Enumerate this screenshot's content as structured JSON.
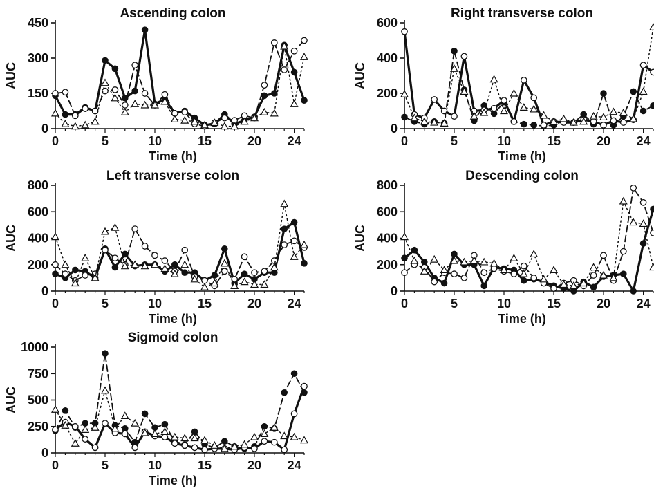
{
  "chart_data": [
    {
      "type": "line",
      "title": "Ascending colon",
      "xlabel": "Time (h)",
      "ylabel": "AUC",
      "xlim": [
        0,
        25
      ],
      "ylim": [
        0,
        450
      ],
      "xticks": [
        "0",
        "5",
        "10",
        "15",
        "20",
        "24"
      ],
      "yticks": [
        "0",
        "150",
        "300",
        "450"
      ],
      "series": [
        {
          "marker": "filled-circle",
          "line": "solid",
          "x": [
            0,
            1,
            2,
            3,
            4,
            5,
            6,
            7,
            8,
            9,
            10,
            11,
            12,
            13,
            14,
            15,
            16,
            17,
            18,
            19,
            20,
            21,
            22,
            23,
            24,
            25
          ],
          "y": [
            140,
            60,
            60,
            90,
            75,
            290,
            255,
            130,
            160,
            420,
            105,
            125,
            65,
            75,
            45,
            15,
            20,
            60,
            20,
            35,
            50,
            140,
            150,
            355,
            240,
            120
          ]
        },
        {
          "marker": "open-circle",
          "line": "dashed",
          "x": [
            0,
            1,
            2,
            3,
            4,
            5,
            6,
            7,
            8,
            9,
            10,
            11,
            12,
            13,
            14,
            15,
            16,
            17,
            18,
            19,
            20,
            21,
            22,
            23,
            24,
            25
          ],
          "y": [
            150,
            155,
            55,
            85,
            75,
            160,
            165,
            100,
            270,
            150,
            100,
            145,
            65,
            70,
            20,
            10,
            25,
            45,
            35,
            55,
            45,
            185,
            365,
            250,
            330,
            375
          ]
        },
        {
          "marker": "open-triangle",
          "line": "dotted",
          "x": [
            0,
            1,
            2,
            3,
            4,
            5,
            6,
            7,
            8,
            9,
            10,
            11,
            12,
            13,
            14,
            15,
            16,
            17,
            18,
            19,
            20,
            21,
            22,
            23,
            24,
            25
          ],
          "y": [
            65,
            20,
            10,
            15,
            30,
            195,
            130,
            70,
            105,
            100,
            100,
            115,
            40,
            35,
            30,
            15,
            25,
            10,
            10,
            30,
            45,
            70,
            65,
            350,
            105,
            305
          ]
        }
      ]
    },
    {
      "type": "line",
      "title": "Right transverse colon",
      "xlabel": "Time (h)",
      "ylabel": "AUC",
      "xlim": [
        0,
        25
      ],
      "ylim": [
        0,
        600
      ],
      "xticks": [
        "0",
        "5",
        "10",
        "15",
        "20",
        "24"
      ],
      "yticks": [
        "0",
        "200",
        "400",
        "600"
      ],
      "series": [
        {
          "marker": "filled-circle",
          "line": "dashed",
          "x": [
            0,
            1,
            2,
            3,
            4,
            5,
            6,
            7,
            8,
            9,
            10,
            11,
            12,
            13,
            14,
            15,
            16,
            17,
            18,
            19,
            20,
            21,
            22,
            23,
            24,
            25
          ],
          "y": [
            65,
            40,
            25,
            40,
            30,
            440,
            220,
            45,
            130,
            85,
            150,
            40,
            25,
            20,
            15,
            20,
            45,
            35,
            80,
            25,
            200,
            20,
            70,
            210,
            100,
            130
          ]
        },
        {
          "marker": "open-circle",
          "line": "solid",
          "x": [
            0,
            1,
            2,
            3,
            4,
            5,
            6,
            7,
            8,
            9,
            10,
            11,
            12,
            13,
            14,
            15,
            16,
            17,
            18,
            19,
            20,
            21,
            22,
            23,
            24,
            25
          ],
          "y": [
            550,
            80,
            60,
            165,
            100,
            70,
            410,
            100,
            105,
            115,
            160,
            40,
            275,
            175,
            20,
            40,
            35,
            35,
            50,
            40,
            20,
            45,
            35,
            50,
            360,
            320
          ]
        },
        {
          "marker": "open-triangle",
          "line": "dotted",
          "x": [
            0,
            1,
            2,
            3,
            4,
            5,
            6,
            7,
            8,
            9,
            10,
            11,
            12,
            13,
            14,
            15,
            16,
            17,
            18,
            19,
            20,
            21,
            22,
            23,
            24,
            25
          ],
          "y": [
            195,
            60,
            40,
            35,
            30,
            340,
            210,
            70,
            90,
            280,
            100,
            200,
            120,
            110,
            75,
            40,
            55,
            35,
            40,
            70,
            65,
            95,
            90,
            55,
            210,
            575
          ]
        }
      ]
    },
    {
      "type": "line",
      "title": "Left transverse colon",
      "xlabel": "Time (h)",
      "ylabel": "AUC",
      "xlim": [
        0,
        25
      ],
      "ylim": [
        0,
        800
      ],
      "xticks": [
        "0",
        "5",
        "10",
        "15",
        "20",
        "24"
      ],
      "yticks": [
        "0",
        "200",
        "400",
        "600",
        "800"
      ],
      "series": [
        {
          "marker": "filled-circle",
          "line": "solid",
          "x": [
            0,
            1,
            2,
            3,
            4,
            5,
            6,
            7,
            8,
            9,
            10,
            11,
            12,
            13,
            14,
            15,
            16,
            17,
            18,
            19,
            20,
            21,
            22,
            23,
            24,
            25
          ],
          "y": [
            130,
            100,
            160,
            150,
            100,
            320,
            180,
            280,
            190,
            200,
            200,
            150,
            200,
            140,
            140,
            80,
            120,
            320,
            60,
            130,
            90,
            140,
            140,
            470,
            520,
            210
          ]
        },
        {
          "marker": "open-circle",
          "line": "dashed",
          "x": [
            0,
            1,
            2,
            3,
            4,
            5,
            6,
            7,
            8,
            9,
            10,
            11,
            12,
            13,
            14,
            15,
            16,
            17,
            18,
            19,
            20,
            21,
            22,
            23,
            24,
            25
          ],
          "y": [
            200,
            130,
            80,
            120,
            130,
            310,
            250,
            200,
            470,
            340,
            270,
            230,
            150,
            310,
            110,
            80,
            40,
            150,
            90,
            260,
            140,
            150,
            230,
            350,
            380,
            330
          ]
        },
        {
          "marker": "open-triangle",
          "line": "dotted",
          "x": [
            0,
            1,
            2,
            3,
            4,
            5,
            6,
            7,
            8,
            9,
            10,
            11,
            12,
            13,
            14,
            15,
            16,
            17,
            18,
            19,
            20,
            21,
            22,
            23,
            24,
            25
          ],
          "y": [
            410,
            200,
            60,
            250,
            100,
            450,
            480,
            190,
            200,
            190,
            200,
            170,
            130,
            200,
            90,
            30,
            60,
            210,
            40,
            70,
            50,
            50,
            180,
            660,
            260,
            350
          ]
        }
      ]
    },
    {
      "type": "line",
      "title": "Descending colon",
      "xlabel": "Time (h)",
      "ylabel": "AUC",
      "xlim": [
        0,
        25
      ],
      "ylim": [
        0,
        800
      ],
      "xticks": [
        "0",
        "5",
        "10",
        "15",
        "20",
        "24"
      ],
      "yticks": [
        "0",
        "200",
        "400",
        "600",
        "800"
      ],
      "series": [
        {
          "marker": "filled-circle",
          "line": "solid",
          "x": [
            0,
            1,
            2,
            3,
            4,
            5,
            6,
            7,
            8,
            9,
            10,
            11,
            12,
            13,
            14,
            15,
            16,
            17,
            18,
            19,
            20,
            21,
            22,
            23,
            24,
            25
          ],
          "y": [
            250,
            310,
            220,
            100,
            60,
            280,
            200,
            200,
            40,
            180,
            170,
            160,
            80,
            90,
            70,
            40,
            20,
            0,
            70,
            30,
            110,
            120,
            130,
            0,
            360,
            620
          ]
        },
        {
          "marker": "open-circle",
          "line": "dashed",
          "x": [
            0,
            1,
            2,
            3,
            4,
            5,
            6,
            7,
            8,
            9,
            10,
            11,
            12,
            13,
            14,
            15,
            16,
            17,
            18,
            19,
            20,
            21,
            22,
            23,
            24,
            25
          ],
          "y": [
            140,
            200,
            180,
            70,
            140,
            130,
            100,
            270,
            140,
            170,
            150,
            130,
            190,
            100,
            60,
            20,
            60,
            80,
            40,
            120,
            270,
            80,
            300,
            780,
            670,
            440
          ]
        },
        {
          "marker": "open-triangle",
          "line": "dotted",
          "x": [
            0,
            1,
            2,
            3,
            4,
            5,
            6,
            7,
            8,
            9,
            10,
            11,
            12,
            13,
            14,
            15,
            16,
            17,
            18,
            19,
            20,
            21,
            22,
            23,
            24,
            25
          ],
          "y": [
            410,
            230,
            150,
            240,
            160,
            230,
            220,
            230,
            220,
            210,
            160,
            250,
            130,
            280,
            90,
            160,
            50,
            40,
            60,
            180,
            120,
            100,
            680,
            520,
            510,
            180
          ]
        }
      ]
    },
    {
      "type": "line",
      "title": "Sigmoid colon",
      "xlabel": "Time (h)",
      "ylabel": "AUC",
      "xlim": [
        0,
        25
      ],
      "ylim": [
        0,
        1000
      ],
      "xticks": [
        "0",
        "5",
        "10",
        "15",
        "20",
        "24"
      ],
      "yticks": [
        "0",
        "250",
        "500",
        "750",
        "1000"
      ],
      "series": [
        {
          "marker": "filled-circle",
          "line": "dashed",
          "x": [
            0,
            1,
            2,
            3,
            4,
            5,
            6,
            7,
            8,
            9,
            10,
            11,
            12,
            13,
            14,
            15,
            16,
            17,
            18,
            19,
            20,
            21,
            22,
            23,
            24,
            25
          ],
          "y": [
            210,
            400,
            240,
            280,
            280,
            940,
            260,
            230,
            100,
            370,
            240,
            270,
            110,
            80,
            200,
            80,
            50,
            110,
            60,
            40,
            60,
            250,
            230,
            570,
            750,
            570
          ]
        },
        {
          "marker": "open-circle",
          "line": "solid",
          "x": [
            0,
            1,
            2,
            3,
            4,
            5,
            6,
            7,
            8,
            9,
            10,
            11,
            12,
            13,
            14,
            15,
            16,
            17,
            18,
            19,
            20,
            21,
            22,
            23,
            24,
            25
          ],
          "y": [
            220,
            290,
            250,
            130,
            50,
            280,
            190,
            180,
            50,
            200,
            160,
            150,
            90,
            70,
            50,
            30,
            40,
            40,
            30,
            50,
            40,
            110,
            100,
            30,
            370,
            630
          ]
        },
        {
          "marker": "open-triangle",
          "line": "dotted",
          "x": [
            0,
            1,
            2,
            3,
            4,
            5,
            6,
            7,
            8,
            9,
            10,
            11,
            12,
            13,
            14,
            15,
            16,
            17,
            18,
            19,
            20,
            21,
            22,
            23,
            24,
            25
          ],
          "y": [
            410,
            260,
            90,
            220,
            240,
            590,
            230,
            350,
            280,
            190,
            180,
            200,
            150,
            140,
            140,
            120,
            70,
            40,
            60,
            80,
            150,
            180,
            240,
            160,
            150,
            120
          ]
        }
      ]
    }
  ]
}
